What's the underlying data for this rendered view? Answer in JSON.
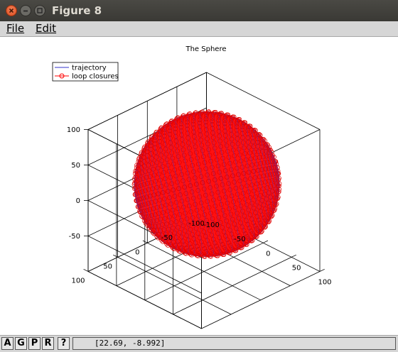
{
  "window": {
    "title": "Figure 8"
  },
  "menu": {
    "file": "File",
    "edit": "Edit"
  },
  "toolbar": {
    "buttons": [
      "A",
      "G",
      "P",
      "R",
      "?"
    ]
  },
  "status": {
    "coords": "[22.69, -8.992]"
  },
  "chart_data": {
    "type": "scatter",
    "projection": "3d",
    "title": "The Sphere",
    "legend": {
      "placement": "top-left",
      "entries": [
        "trajectory",
        "loop closures"
      ]
    },
    "series": [
      {
        "name": "trajectory",
        "color": "#3333cc",
        "style": "line"
      },
      {
        "name": "loop closures",
        "color": "#ff0000",
        "style": "circle-markers"
      }
    ],
    "xlim": [
      -100,
      100
    ],
    "ylim": [
      -100,
      100
    ],
    "zlim": [
      -100,
      100
    ],
    "x_ticks": [
      "100",
      "50",
      "0",
      "-50",
      "-100"
    ],
    "y_ticks": [
      "100",
      "50",
      "0",
      "-50",
      "-100"
    ],
    "z_ticks": [
      "100",
      "50",
      "0",
      "-50"
    ],
    "grid": true,
    "shape": "sphere",
    "sphere_radius": 50,
    "sphere_center": [
      0,
      0,
      0
    ]
  }
}
